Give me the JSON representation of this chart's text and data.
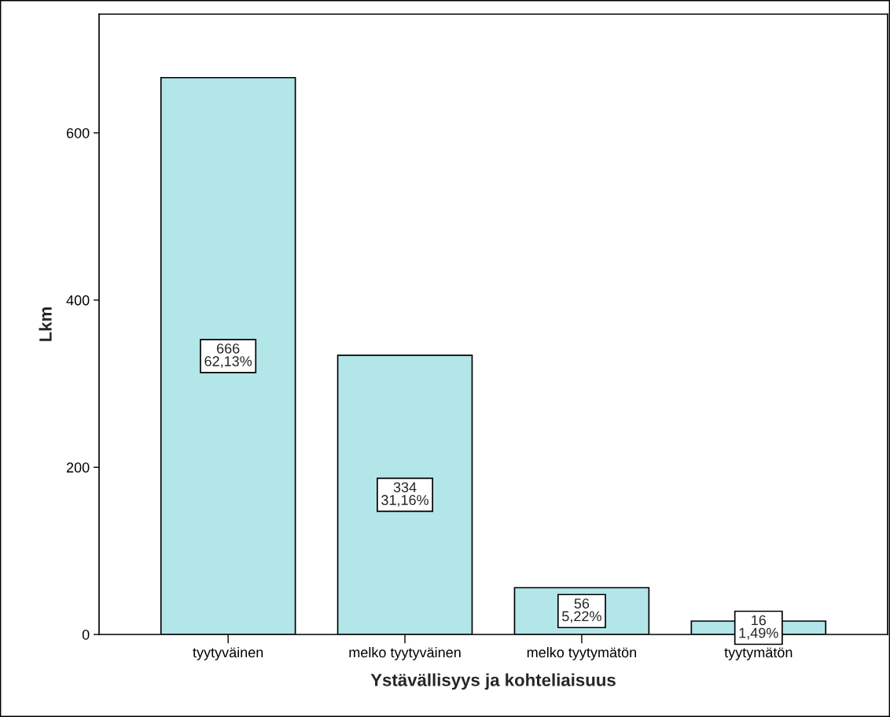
{
  "chart_data": {
    "type": "bar",
    "xlabel": "Ystävällisyys ja kohteliaisuus",
    "ylabel": "Lkm",
    "categories": [
      "tyytyväinen",
      "melko tyytyväinen",
      "melko tyytymätön",
      "tyytymätön"
    ],
    "values": [
      666,
      334,
      56,
      16
    ],
    "value_labels": [
      "666\n62,13%",
      "334\n31,16%",
      "56\n5,22%",
      "16\n1,49%"
    ],
    "color": "#b3e6e8",
    "ylim": [
      0,
      742
    ],
    "yticks": [
      0,
      200,
      400,
      600
    ],
    "grid": false,
    "legend": false
  }
}
